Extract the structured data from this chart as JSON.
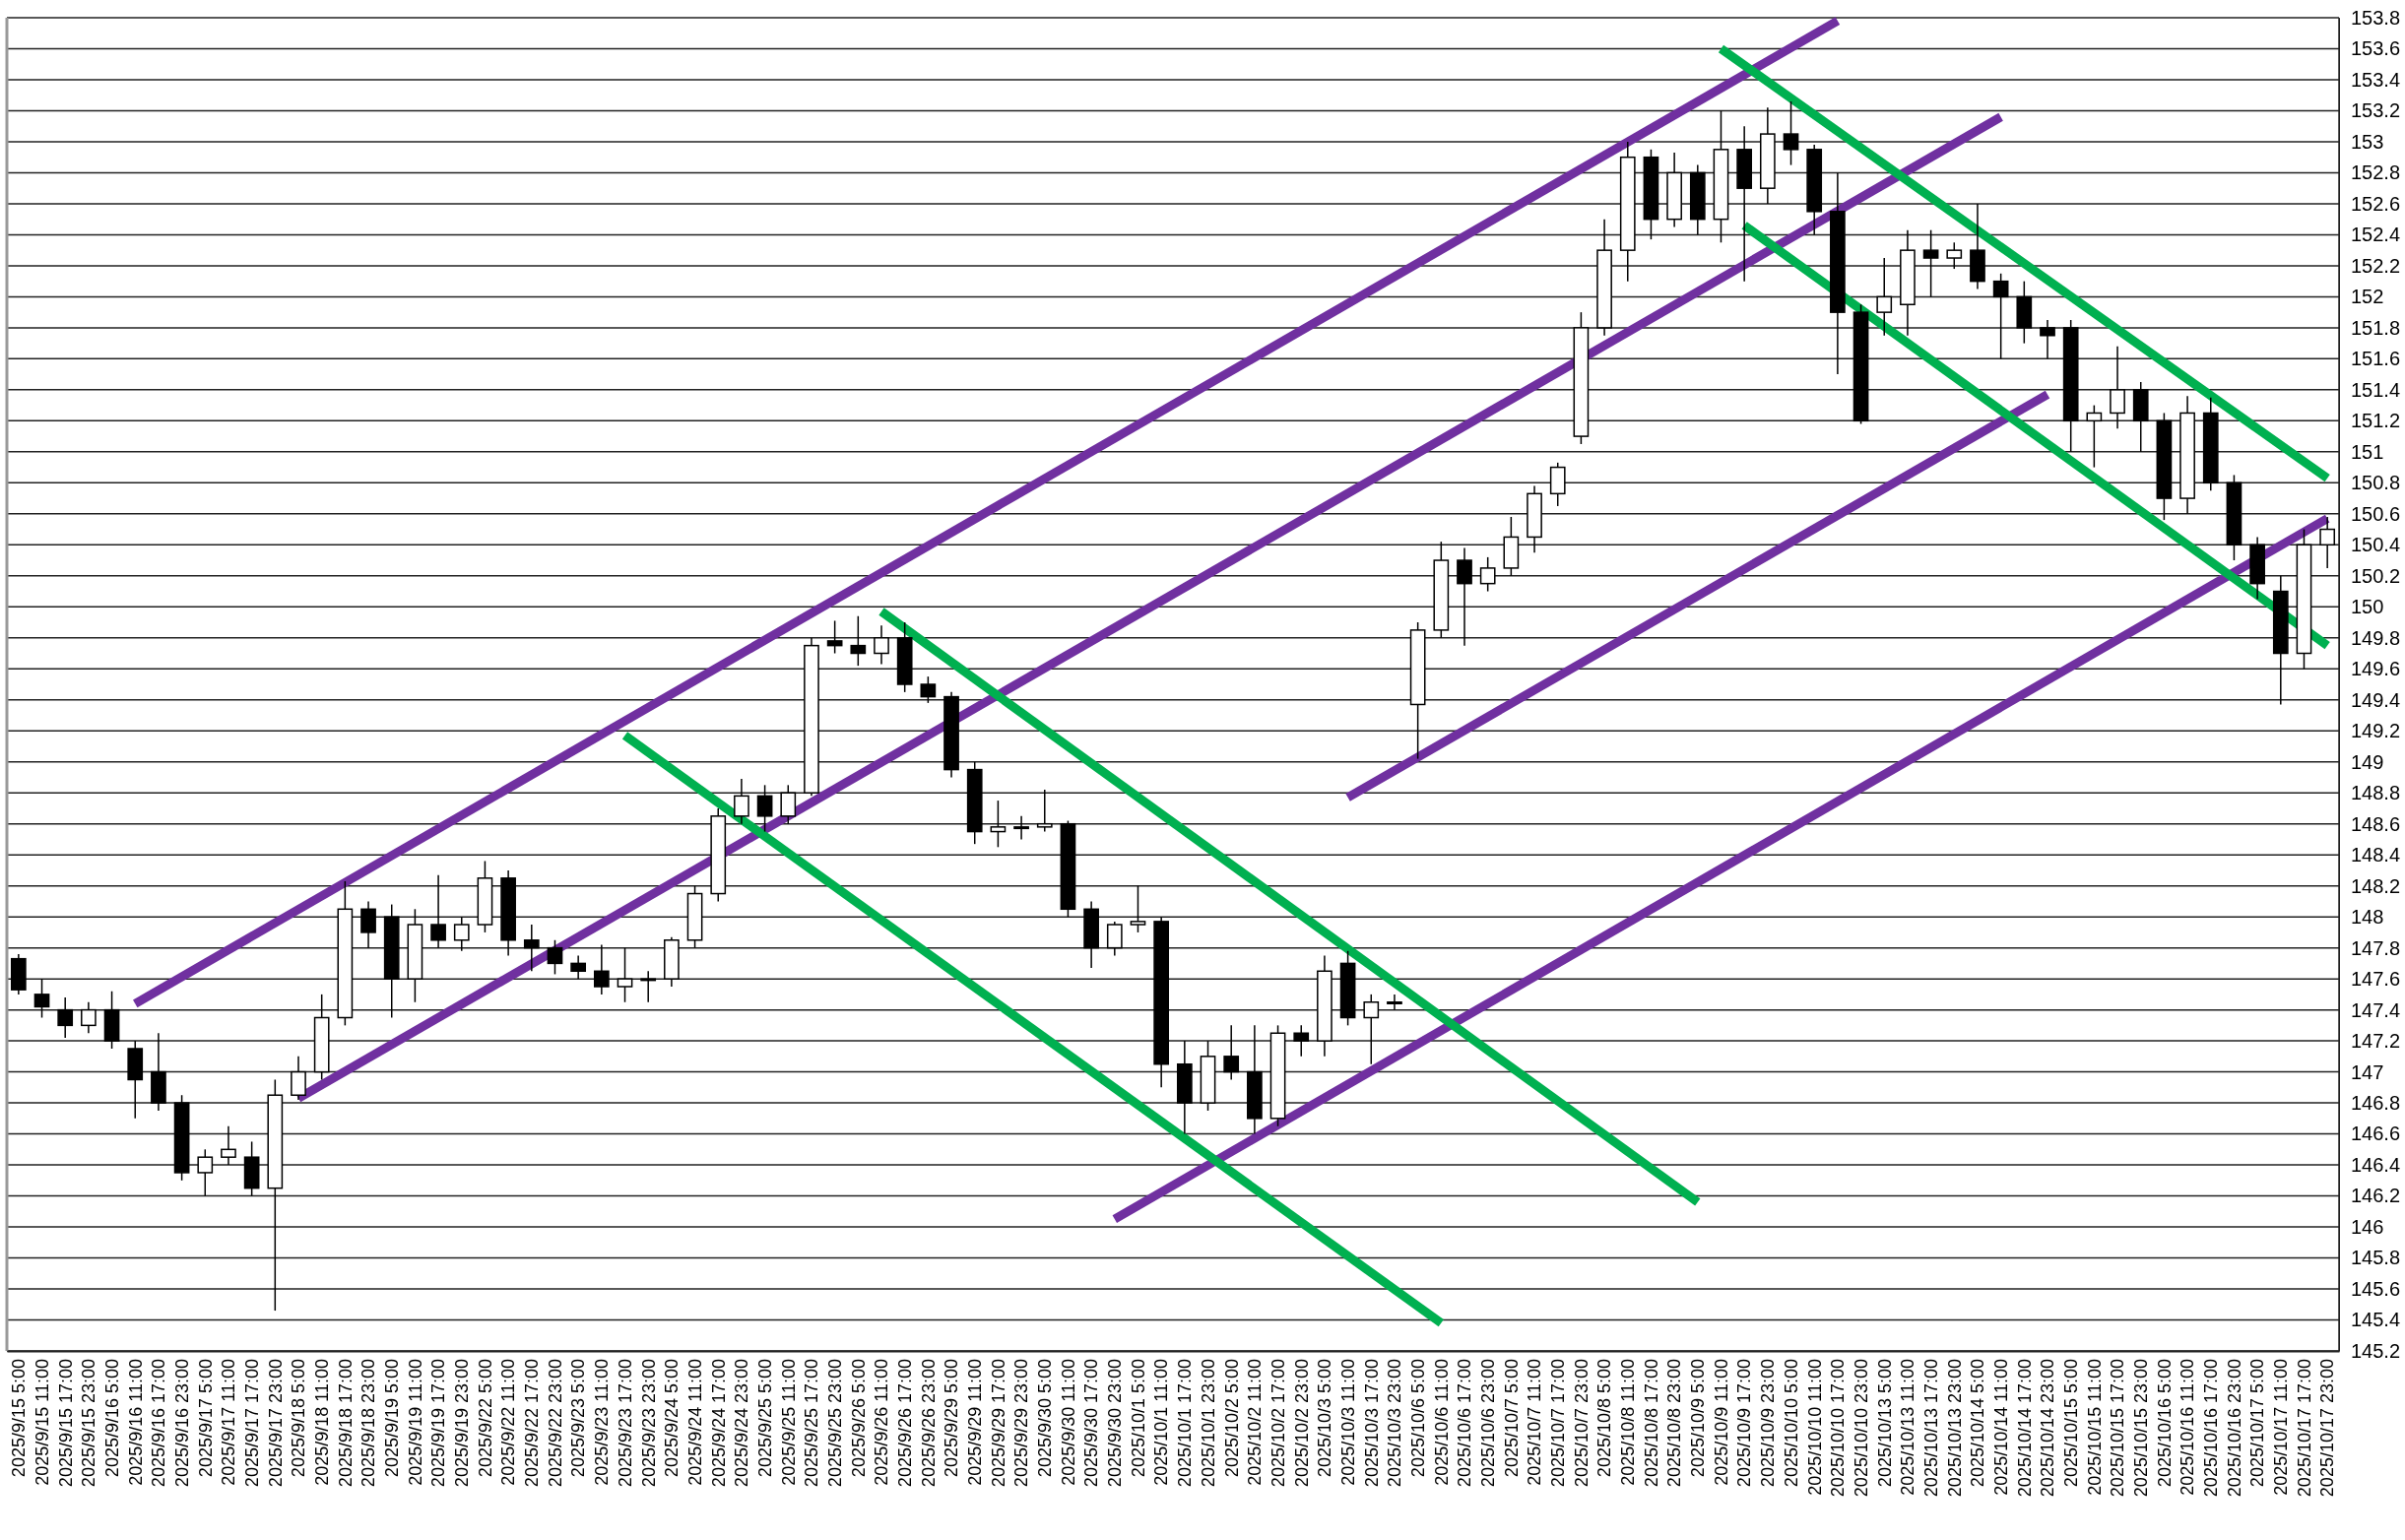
{
  "chart_data": {
    "type": "candlestick",
    "categories": [
      "2025/9/15 5:00",
      "2025/9/15 11:00",
      "2025/9/15 17:00",
      "2025/9/15 23:00",
      "2025/9/16 5:00",
      "2025/9/16 11:00",
      "2025/9/16 17:00",
      "2025/9/16 23:00",
      "2025/9/17 5:00",
      "2025/9/17 11:00",
      "2025/9/17 17:00",
      "2025/9/17 23:00",
      "2025/9/18 5:00",
      "2025/9/18 11:00",
      "2025/9/18 17:00",
      "2025/9/18 23:00",
      "2025/9/19 5:00",
      "2025/9/19 11:00",
      "2025/9/19 17:00",
      "2025/9/19 23:00",
      "2025/9/22 5:00",
      "2025/9/22 11:00",
      "2025/9/22 17:00",
      "2025/9/22 23:00",
      "2025/9/23 5:00",
      "2025/9/23 11:00",
      "2025/9/23 17:00",
      "2025/9/23 23:00",
      "2025/9/24 5:00",
      "2025/9/24 11:00",
      "2025/9/24 17:00",
      "2025/9/24 23:00",
      "2025/9/25 5:00",
      "2025/9/25 11:00",
      "2025/9/25 17:00",
      "2025/9/25 23:00",
      "2025/9/26 5:00",
      "2025/9/26 11:00",
      "2025/9/26 17:00",
      "2025/9/26 23:00",
      "2025/9/29 5:00",
      "2025/9/29 11:00",
      "2025/9/29 17:00",
      "2025/9/29 23:00",
      "2025/9/30 5:00",
      "2025/9/30 11:00",
      "2025/9/30 17:00",
      "2025/9/30 23:00",
      "2025/10/1 5:00",
      "2025/10/1 11:00",
      "2025/10/1 17:00",
      "2025/10/1 23:00",
      "2025/10/2 5:00",
      "2025/10/2 11:00",
      "2025/10/2 17:00",
      "2025/10/2 23:00",
      "2025/10/3 5:00",
      "2025/10/3 11:00",
      "2025/10/3 17:00",
      "2025/10/3 23:00",
      "2025/10/6 5:00",
      "2025/10/6 11:00",
      "2025/10/6 17:00",
      "2025/10/6 23:00",
      "2025/10/7 5:00",
      "2025/10/7 11:00",
      "2025/10/7 17:00",
      "2025/10/7 23:00",
      "2025/10/8 5:00",
      "2025/10/8 11:00",
      "2025/10/8 17:00",
      "2025/10/8 23:00",
      "2025/10/9 5:00",
      "2025/10/9 11:00",
      "2025/10/9 17:00",
      "2025/10/9 23:00",
      "2025/10/10 5:00",
      "2025/10/10 11:00",
      "2025/10/10 17:00",
      "2025/10/10 23:00",
      "2025/10/13 5:00",
      "2025/10/13 11:00",
      "2025/10/13 17:00",
      "2025/10/13 23:00",
      "2025/10/14 5:00",
      "2025/10/14 11:00",
      "2025/10/14 17:00",
      "2025/10/14 23:00",
      "2025/10/15 5:00",
      "2025/10/15 11:00",
      "2025/10/15 17:00",
      "2025/10/15 23:00",
      "2025/10/16 5:00",
      "2025/10/16 11:00",
      "2025/10/16 17:00",
      "2025/10/16 23:00",
      "2025/10/17 5:00",
      "2025/10/17 11:00",
      "2025/10/17 17:00",
      "2025/10/17 23:00"
    ],
    "ohlc": [
      [
        147.73,
        147.76,
        147.5,
        147.53
      ],
      [
        147.5,
        147.6,
        147.35,
        147.42
      ],
      [
        147.4,
        147.48,
        147.22,
        147.3
      ],
      [
        147.3,
        147.45,
        147.25,
        147.4
      ],
      [
        147.4,
        147.52,
        147.15,
        147.2
      ],
      [
        147.15,
        147.2,
        146.7,
        146.95
      ],
      [
        147.0,
        147.25,
        146.75,
        146.8
      ],
      [
        146.8,
        146.85,
        146.3,
        146.35
      ],
      [
        146.35,
        146.5,
        146.2,
        146.45
      ],
      [
        146.45,
        146.65,
        146.4,
        146.5
      ],
      [
        146.45,
        146.55,
        146.2,
        146.25
      ],
      [
        146.25,
        146.95,
        145.46,
        146.85
      ],
      [
        146.85,
        147.1,
        146.82,
        147.0
      ],
      [
        147.0,
        147.5,
        146.95,
        147.35
      ],
      [
        147.35,
        148.23,
        147.3,
        148.05
      ],
      [
        148.05,
        148.1,
        147.8,
        147.9
      ],
      [
        148.0,
        148.08,
        147.35,
        147.6
      ],
      [
        147.6,
        148.05,
        147.45,
        147.95
      ],
      [
        147.95,
        148.27,
        147.8,
        147.85
      ],
      [
        147.85,
        148.0,
        147.78,
        147.95
      ],
      [
        147.95,
        148.36,
        147.9,
        148.25
      ],
      [
        148.25,
        148.3,
        147.75,
        147.85
      ],
      [
        147.85,
        147.95,
        147.65,
        147.8
      ],
      [
        147.8,
        147.85,
        147.63,
        147.7
      ],
      [
        147.7,
        147.75,
        147.6,
        147.65
      ],
      [
        147.65,
        147.82,
        147.5,
        147.55
      ],
      [
        147.55,
        147.8,
        147.45,
        147.6
      ],
      [
        147.6,
        147.65,
        147.45,
        147.6
      ],
      [
        147.6,
        147.87,
        147.55,
        147.85
      ],
      [
        147.85,
        148.2,
        147.8,
        148.15
      ],
      [
        148.15,
        148.7,
        148.1,
        148.65
      ],
      [
        148.65,
        148.89,
        148.6,
        148.78
      ],
      [
        148.78,
        148.85,
        148.55,
        148.65
      ],
      [
        148.65,
        148.85,
        148.6,
        148.8
      ],
      [
        148.8,
        149.8,
        148.78,
        149.75
      ],
      [
        149.78,
        149.91,
        149.7,
        149.75
      ],
      [
        149.75,
        149.94,
        149.62,
        149.7
      ],
      [
        149.7,
        149.88,
        149.63,
        149.8
      ],
      [
        149.8,
        149.9,
        149.45,
        149.5
      ],
      [
        149.5,
        149.55,
        149.38,
        149.42
      ],
      [
        149.42,
        149.45,
        148.9,
        148.95
      ],
      [
        148.95,
        149.0,
        148.47,
        148.55
      ],
      [
        148.55,
        148.75,
        148.45,
        148.58
      ],
      [
        148.58,
        148.65,
        148.5,
        148.58
      ],
      [
        148.58,
        148.82,
        148.55,
        148.6
      ],
      [
        148.6,
        148.62,
        148.0,
        148.05
      ],
      [
        148.05,
        148.1,
        147.67,
        147.8
      ],
      [
        147.8,
        147.97,
        147.75,
        147.95
      ],
      [
        147.95,
        148.2,
        147.9,
        147.97
      ],
      [
        147.97,
        148.0,
        146.9,
        147.05
      ],
      [
        147.05,
        147.2,
        146.6,
        146.8
      ],
      [
        146.8,
        147.2,
        146.75,
        147.1
      ],
      [
        147.1,
        147.3,
        146.95,
        147.0
      ],
      [
        147.0,
        147.3,
        146.6,
        146.7
      ],
      [
        146.7,
        147.3,
        146.65,
        147.25
      ],
      [
        147.25,
        147.3,
        147.1,
        147.2
      ],
      [
        147.2,
        147.75,
        147.1,
        147.65
      ],
      [
        147.7,
        147.78,
        147.3,
        147.35
      ],
      [
        147.35,
        147.5,
        147.05,
        147.45
      ],
      [
        147.45,
        147.5,
        147.4,
        147.45
      ],
      [
        149.37,
        149.9,
        149.02,
        149.85
      ],
      [
        149.85,
        150.42,
        149.8,
        150.3
      ],
      [
        150.3,
        150.38,
        149.75,
        150.15
      ],
      [
        150.15,
        150.32,
        150.1,
        150.25
      ],
      [
        150.25,
        150.58,
        150.2,
        150.45
      ],
      [
        150.45,
        150.78,
        150.35,
        150.73
      ],
      [
        150.73,
        150.93,
        150.65,
        150.9
      ],
      [
        151.1,
        151.9,
        151.05,
        151.8
      ],
      [
        151.8,
        152.5,
        151.75,
        152.3
      ],
      [
        152.3,
        153.0,
        152.1,
        152.9
      ],
      [
        152.9,
        152.95,
        152.37,
        152.5
      ],
      [
        152.5,
        152.93,
        152.45,
        152.8
      ],
      [
        152.8,
        152.85,
        152.4,
        152.5
      ],
      [
        152.5,
        153.2,
        152.35,
        152.95
      ],
      [
        152.95,
        153.1,
        152.1,
        152.7
      ],
      [
        152.7,
        153.22,
        152.6,
        153.05
      ],
      [
        153.05,
        153.26,
        152.85,
        152.95
      ],
      [
        152.95,
        152.98,
        152.4,
        152.55
      ],
      [
        152.55,
        152.8,
        151.5,
        151.9
      ],
      [
        151.9,
        151.95,
        151.18,
        151.2
      ],
      [
        151.9,
        152.25,
        151.75,
        152.0
      ],
      [
        151.95,
        152.43,
        151.75,
        152.3
      ],
      [
        152.3,
        152.43,
        152.0,
        152.25
      ],
      [
        152.25,
        152.35,
        152.18,
        152.3
      ],
      [
        152.3,
        152.6,
        152.05,
        152.1
      ],
      [
        152.1,
        152.15,
        151.6,
        152.0
      ],
      [
        152.0,
        152.1,
        151.7,
        151.8
      ],
      [
        151.8,
        151.85,
        151.6,
        151.75
      ],
      [
        151.8,
        151.85,
        151.0,
        151.2
      ],
      [
        151.2,
        151.3,
        150.9,
        151.25
      ],
      [
        151.25,
        151.68,
        151.15,
        151.4
      ],
      [
        151.4,
        151.45,
        151.0,
        151.2
      ],
      [
        151.2,
        151.25,
        150.56,
        150.7
      ],
      [
        150.7,
        151.36,
        150.6,
        151.25
      ],
      [
        151.25,
        151.35,
        150.75,
        150.8
      ],
      [
        150.8,
        150.85,
        150.3,
        150.4
      ],
      [
        150.4,
        150.45,
        150.05,
        150.15
      ],
      [
        150.1,
        150.2,
        149.37,
        149.7
      ],
      [
        149.7,
        150.5,
        149.6,
        150.4
      ],
      [
        150.4,
        150.58,
        150.25,
        150.5
      ]
    ],
    "series": [
      {
        "type": "line",
        "color": "#7030a0",
        "x": [
          "2025/9/16 11:00",
          "2025/10/10 17:00"
        ],
        "values": [
          147.44,
          153.78
        ]
      },
      {
        "type": "line",
        "color": "#7030a0",
        "x": [
          "2025/9/18 5:00",
          "2025/10/14 11:00"
        ],
        "values": [
          146.83,
          153.16
        ]
      },
      {
        "type": "line",
        "color": "#7030a0",
        "x": [
          "2025/10/3 11:00",
          "2025/10/14 23:00"
        ],
        "values": [
          148.77,
          151.37
        ]
      },
      {
        "type": "line",
        "color": "#7030a0",
        "x": [
          "2025/9/30 23:00",
          "2025/10/17 23:00"
        ],
        "values": [
          146.05,
          150.57
        ]
      },
      {
        "type": "line",
        "color": "#00b050",
        "x": [
          "2025/9/23 17:00",
          "2025/10/6 11:00"
        ],
        "values": [
          149.17,
          145.38
        ]
      },
      {
        "type": "line",
        "color": "#00b050",
        "x": [
          "2025/9/26 11:00",
          "2025/10/9 5:00"
        ],
        "values": [
          149.97,
          146.16
        ]
      },
      {
        "type": "line",
        "color": "#00b050",
        "x": [
          "2025/10/9 17:00",
          "2025/10/17 23:00"
        ],
        "values": [
          152.46,
          149.75
        ]
      },
      {
        "type": "line",
        "color": "#00b050",
        "x": [
          "2025/10/9 11:00",
          "2025/10/17 23:00"
        ],
        "values": [
          153.6,
          150.83
        ]
      }
    ],
    "ylim": [
      145.2,
      153.8
    ],
    "yticks": [
      145.2,
      145.4,
      145.6,
      145.8,
      146,
      146.2,
      146.4,
      146.6,
      146.8,
      147,
      147.2,
      147.4,
      147.6,
      147.8,
      148,
      148.2,
      148.4,
      148.6,
      148.8,
      149,
      149.2,
      149.4,
      149.6,
      149.8,
      150,
      150.2,
      150.4,
      150.6,
      150.8,
      151,
      151.2,
      151.4,
      151.6,
      151.8,
      152,
      152.2,
      152.4,
      152.6,
      152.8,
      153,
      153.2,
      153.4,
      153.6,
      153.8
    ],
    "grid": "y",
    "marker": "none",
    "line_style": "solid"
  }
}
